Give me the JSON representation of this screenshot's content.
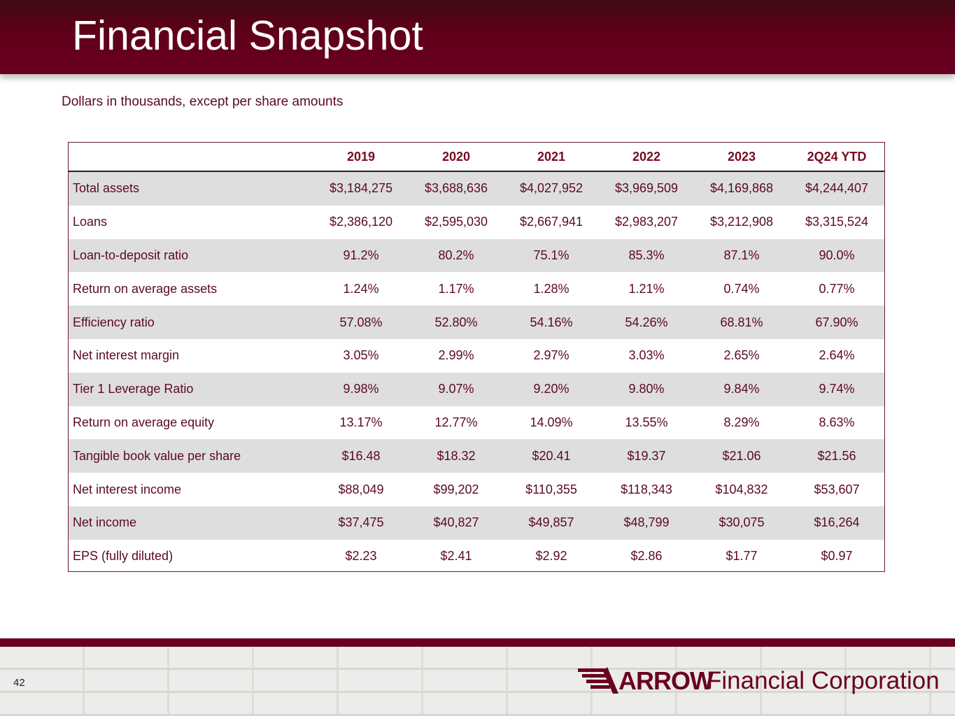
{
  "slide": {
    "title": "Financial Snapshot",
    "subtitle": "Dollars in thousands, except per share amounts",
    "page_number": "42"
  },
  "table": {
    "headers": [
      "",
      "2019",
      "2020",
      "2021",
      "2022",
      "2023",
      "2Q24 YTD"
    ],
    "rows": [
      [
        "Total assets",
        "$3,184,275",
        "$3,688,636",
        "$4,027,952",
        "$3,969,509",
        "$4,169,868",
        "$4,244,407"
      ],
      [
        "Loans",
        "$2,386,120",
        "$2,595,030",
        "$2,667,941",
        "$2,983,207",
        "$3,212,908",
        "$3,315,524"
      ],
      [
        "Loan-to-deposit ratio",
        "91.2%",
        "80.2%",
        "75.1%",
        "85.3%",
        "87.1%",
        "90.0%"
      ],
      [
        "Return on average assets",
        "1.24%",
        "1.17%",
        "1.28%",
        "1.21%",
        "0.74%",
        "0.77%"
      ],
      [
        "Efficiency ratio",
        "57.08%",
        "52.80%",
        "54.16%",
        "54.26%",
        "68.81%",
        "67.90%"
      ],
      [
        "Net interest margin",
        "3.05%",
        "2.99%",
        "2.97%",
        "3.03%",
        "2.65%",
        "2.64%"
      ],
      [
        "Tier 1 Leverage Ratio",
        "9.98%",
        "9.07%",
        "9.20%",
        "9.80%",
        "9.84%",
        "9.74%"
      ],
      [
        "Return on average equity",
        "13.17%",
        "12.77%",
        "14.09%",
        "13.55%",
        "8.29%",
        "8.63%"
      ],
      [
        "Tangible book value per share",
        "$16.48",
        "$18.32",
        "$20.41",
        "$19.37",
        "$21.06",
        "$21.56"
      ],
      [
        "Net interest income",
        "$88,049",
        "$99,202",
        "$110,355",
        "$118,343",
        "$104,832",
        "$53,607"
      ],
      [
        "Net income",
        "$37,475",
        "$40,827",
        "$49,857",
        "$48,799",
        "$30,075",
        "$16,264"
      ],
      [
        "EPS (fully diluted)",
        "$2.23",
        "$2.41",
        "$2.92",
        "$2.86",
        "$1.77",
        "$0.97"
      ]
    ]
  },
  "logo": {
    "brand": "ARROW",
    "company": "Financial Corporation"
  },
  "colors": {
    "brand_maroon": "#6a0020",
    "text_maroon": "#5c0a1e",
    "row_shade": "#dedede"
  }
}
